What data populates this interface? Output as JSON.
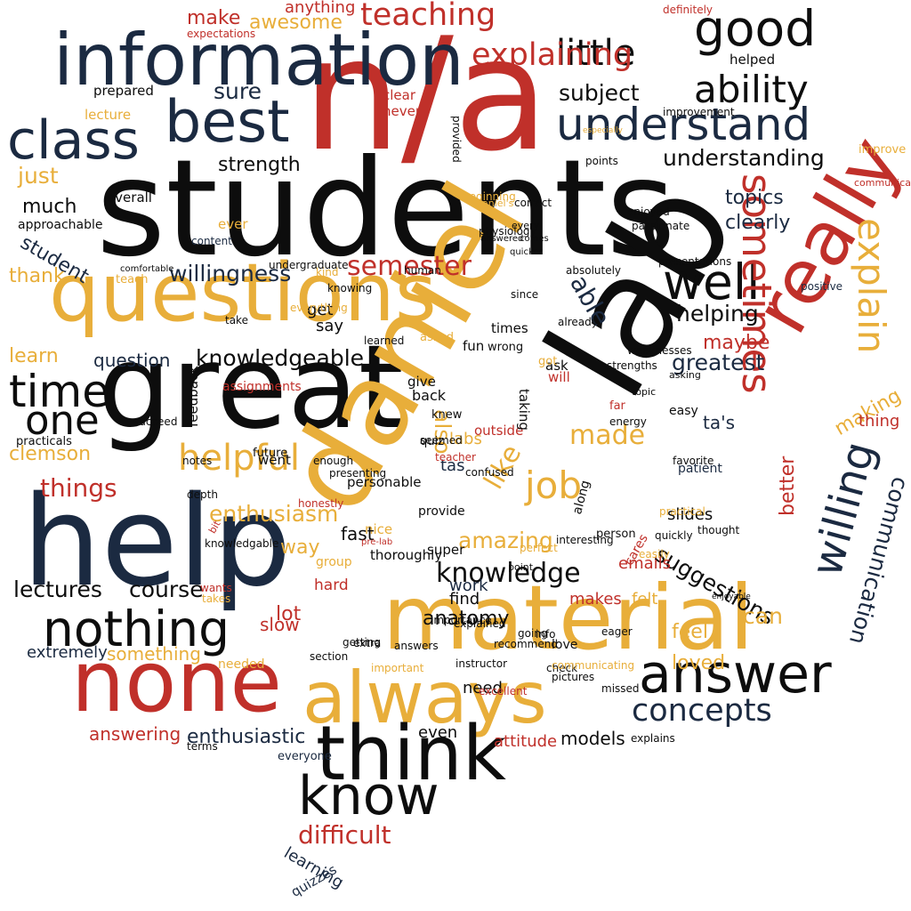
{
  "colors": {
    "navy": "#1b2a41",
    "black": "#0d0d0d",
    "red": "#c0302a",
    "gold": "#e8ae3a"
  },
  "words": [
    {
      "text": "students",
      "color": "black"
    },
    {
      "text": "n/a",
      "color": "red"
    },
    {
      "text": "great",
      "color": "black"
    },
    {
      "text": "daniel",
      "color": "gold"
    },
    {
      "text": "lab",
      "color": "black"
    },
    {
      "text": "help",
      "color": "navy"
    },
    {
      "text": "information",
      "color": "navy"
    },
    {
      "text": "questions",
      "color": "gold"
    },
    {
      "text": "material",
      "color": "gold"
    },
    {
      "text": "none",
      "color": "red"
    },
    {
      "text": "always",
      "color": "gold"
    },
    {
      "text": "think",
      "color": "black"
    },
    {
      "text": "really",
      "color": "red"
    },
    {
      "text": "know",
      "color": "black"
    },
    {
      "text": "answer",
      "color": "black"
    },
    {
      "text": "best",
      "color": "navy"
    },
    {
      "text": "class",
      "color": "navy"
    },
    {
      "text": "understand",
      "color": "navy"
    },
    {
      "text": "good",
      "color": "black"
    },
    {
      "text": "well",
      "color": "black"
    },
    {
      "text": "nothing",
      "color": "black"
    },
    {
      "text": "time",
      "color": "black"
    },
    {
      "text": "one",
      "color": "black"
    },
    {
      "text": "willing",
      "color": "navy"
    },
    {
      "text": "sometimes",
      "color": "red"
    },
    {
      "text": "explain",
      "color": "gold"
    },
    {
      "text": "helpful",
      "color": "gold"
    },
    {
      "text": "ability",
      "color": "black"
    },
    {
      "text": "concepts",
      "color": "navy"
    },
    {
      "text": "job",
      "color": "gold"
    },
    {
      "text": "little",
      "color": "black"
    },
    {
      "text": "teaching",
      "color": "red"
    },
    {
      "text": "explaining",
      "color": "red"
    },
    {
      "text": "semester",
      "color": "red"
    },
    {
      "text": "knowledge",
      "color": "black"
    },
    {
      "text": "like",
      "color": "gold"
    },
    {
      "text": "made",
      "color": "gold"
    },
    {
      "text": "communication",
      "color": "navy"
    },
    {
      "text": "able",
      "color": "navy"
    },
    {
      "text": "understanding",
      "color": "black"
    },
    {
      "text": "difficult",
      "color": "red"
    },
    {
      "text": "things",
      "color": "red"
    },
    {
      "text": "course",
      "color": "black"
    },
    {
      "text": "lectures",
      "color": "black"
    },
    {
      "text": "greatest",
      "color": "navy"
    },
    {
      "text": "knowledgeable",
      "color": "black"
    },
    {
      "text": "amazing",
      "color": "gold"
    },
    {
      "text": "enthusiasm",
      "color": "gold"
    },
    {
      "text": "suggestions",
      "color": "black"
    },
    {
      "text": "helping",
      "color": "black"
    },
    {
      "text": "better",
      "color": "red"
    },
    {
      "text": "clearly",
      "color": "navy"
    },
    {
      "text": "topics",
      "color": "navy"
    },
    {
      "text": "subject",
      "color": "black"
    },
    {
      "text": "sure",
      "color": "navy"
    },
    {
      "text": "willingness",
      "color": "navy"
    },
    {
      "text": "strength",
      "color": "black"
    },
    {
      "text": "maybe",
      "color": "red"
    },
    {
      "text": "also",
      "color": "gold"
    },
    {
      "text": "can",
      "color": "gold"
    },
    {
      "text": "feel",
      "color": "gold"
    },
    {
      "text": "loved",
      "color": "gold"
    },
    {
      "text": "making",
      "color": "gold"
    },
    {
      "text": "anatomy",
      "color": "black"
    },
    {
      "text": "lot",
      "color": "red"
    },
    {
      "text": "clemson",
      "color": "gold"
    },
    {
      "text": "learn",
      "color": "gold"
    },
    {
      "text": "way",
      "color": "gold"
    },
    {
      "text": "enthusiastic",
      "color": "navy"
    },
    {
      "text": "answering",
      "color": "red"
    },
    {
      "text": "just",
      "color": "gold"
    },
    {
      "text": "much",
      "color": "black"
    },
    {
      "text": "student",
      "color": "navy"
    },
    {
      "text": "thank",
      "color": "gold"
    },
    {
      "text": "question",
      "color": "navy"
    },
    {
      "text": "make",
      "color": "red"
    },
    {
      "text": "awesome",
      "color": "gold"
    },
    {
      "text": "anything",
      "color": "red"
    },
    {
      "text": "learning",
      "color": "navy"
    },
    {
      "text": "quizzes",
      "color": "navy"
    },
    {
      "text": "models",
      "color": "black"
    },
    {
      "text": "extremely",
      "color": "navy"
    },
    {
      "text": "something",
      "color": "gold"
    },
    {
      "text": "ta's",
      "color": "navy"
    },
    {
      "text": "thing",
      "color": "red"
    },
    {
      "text": "slides",
      "color": "black"
    },
    {
      "text": "felt",
      "color": "gold"
    },
    {
      "text": "makes",
      "color": "red"
    },
    {
      "text": "emails",
      "color": "red"
    },
    {
      "text": "labs",
      "color": "gold"
    },
    {
      "text": "tas",
      "color": "navy"
    },
    {
      "text": "work",
      "color": "navy"
    },
    {
      "text": "find",
      "color": "black"
    },
    {
      "text": "get",
      "color": "black"
    },
    {
      "text": "say",
      "color": "black"
    },
    {
      "text": "even",
      "color": "black"
    },
    {
      "text": "need",
      "color": "black"
    },
    {
      "text": "attitude",
      "color": "red"
    },
    {
      "text": "definitely",
      "color": "red"
    },
    {
      "text": "expectations",
      "color": "red"
    },
    {
      "text": "helped",
      "color": "black"
    },
    {
      "text": "prepared",
      "color": "black"
    },
    {
      "text": "lecture",
      "color": "gold"
    },
    {
      "text": "clear",
      "color": "red"
    },
    {
      "text": "never",
      "color": "red"
    },
    {
      "text": "improve",
      "color": "gold"
    },
    {
      "text": "improvement",
      "color": "black"
    },
    {
      "text": "communicate",
      "color": "red"
    },
    {
      "text": "overall",
      "color": "black"
    },
    {
      "text": "approachable",
      "color": "black"
    },
    {
      "text": "content",
      "color": "navy"
    },
    {
      "text": "ever",
      "color": "gold"
    },
    {
      "text": "enjoyed",
      "color": "black"
    },
    {
      "text": "passionate",
      "color": "black"
    },
    {
      "text": "points",
      "color": "black"
    },
    {
      "text": "positive",
      "color": "navy"
    },
    {
      "text": "presentations",
      "color": "black"
    },
    {
      "text": "easy",
      "color": "black"
    },
    {
      "text": "patient",
      "color": "navy"
    },
    {
      "text": "favorite",
      "color": "black"
    },
    {
      "text": "eager",
      "color": "black"
    },
    {
      "text": "love",
      "color": "black"
    },
    {
      "text": "check",
      "color": "black"
    },
    {
      "text": "going",
      "color": "black"
    },
    {
      "text": "explained",
      "color": "black"
    },
    {
      "text": "slow",
      "color": "red"
    },
    {
      "text": "hard",
      "color": "red"
    },
    {
      "text": "nice",
      "color": "gold"
    },
    {
      "text": "fast",
      "color": "black"
    },
    {
      "text": "getting",
      "color": "black"
    },
    {
      "text": "needed",
      "color": "gold"
    },
    {
      "text": "practicals",
      "color": "black"
    },
    {
      "text": "succeed",
      "color": "black"
    },
    {
      "text": "feedback",
      "color": "black"
    },
    {
      "text": "went",
      "color": "black"
    },
    {
      "text": "everyone",
      "color": "navy"
    },
    {
      "text": "terms",
      "color": "black"
    },
    {
      "text": "give",
      "color": "black"
    },
    {
      "text": "back",
      "color": "black"
    },
    {
      "text": "quiz",
      "color": "black"
    },
    {
      "text": "ask",
      "color": "black"
    },
    {
      "text": "teach",
      "color": "gold"
    },
    {
      "text": "comfortable",
      "color": "black"
    },
    {
      "text": "knowing",
      "color": "black"
    },
    {
      "text": "kind",
      "color": "gold"
    },
    {
      "text": "times",
      "color": "black"
    },
    {
      "text": "fun",
      "color": "black"
    },
    {
      "text": "will",
      "color": "red"
    },
    {
      "text": "got",
      "color": "gold"
    },
    {
      "text": "far",
      "color": "red"
    },
    {
      "text": "energy",
      "color": "black"
    },
    {
      "text": "super",
      "color": "black"
    },
    {
      "text": "thoroughly",
      "color": "black"
    },
    {
      "text": "provide",
      "color": "black"
    },
    {
      "text": "personable",
      "color": "black"
    },
    {
      "text": "seemed",
      "color": "black"
    },
    {
      "text": "teacher",
      "color": "red"
    },
    {
      "text": "outside",
      "color": "red"
    },
    {
      "text": "asked",
      "color": "gold"
    },
    {
      "text": "wrong",
      "color": "black"
    },
    {
      "text": "taking",
      "color": "black"
    },
    {
      "text": "knew",
      "color": "black"
    },
    {
      "text": "weaknesses",
      "color": "black"
    },
    {
      "text": "strengths",
      "color": "black"
    },
    {
      "text": "asking",
      "color": "black"
    },
    {
      "text": "topic",
      "color": "black"
    },
    {
      "text": "person",
      "color": "black"
    },
    {
      "text": "along",
      "color": "black"
    },
    {
      "text": "cares",
      "color": "red"
    },
    {
      "text": "honestly",
      "color": "red"
    },
    {
      "text": "assignments",
      "color": "red"
    },
    {
      "text": "knowledgable",
      "color": "black"
    },
    {
      "text": "bit",
      "color": "red"
    },
    {
      "text": "wants",
      "color": "red"
    },
    {
      "text": "takes",
      "color": "gold"
    },
    {
      "text": "notes",
      "color": "black"
    },
    {
      "text": "future",
      "color": "black"
    },
    {
      "text": "enough",
      "color": "black"
    },
    {
      "text": "presenting",
      "color": "black"
    },
    {
      "text": "confused",
      "color": "black"
    },
    {
      "text": "depth",
      "color": "black"
    },
    {
      "text": "group",
      "color": "gold"
    },
    {
      "text": "daniel's",
      "color": "gold"
    },
    {
      "text": "beginning",
      "color": "gold"
    },
    {
      "text": "physiology",
      "color": "black"
    },
    {
      "text": "answered",
      "color": "black"
    },
    {
      "text": "every",
      "color": "black"
    },
    {
      "text": "correct",
      "color": "black"
    },
    {
      "text": "quicker",
      "color": "black"
    },
    {
      "text": "comes",
      "color": "black"
    },
    {
      "text": "since",
      "color": "black"
    },
    {
      "text": "already",
      "color": "black"
    },
    {
      "text": "absolutely",
      "color": "black"
    },
    {
      "text": "provided",
      "color": "black"
    },
    {
      "text": "human",
      "color": "black"
    },
    {
      "text": "everything",
      "color": "gold"
    },
    {
      "text": "take",
      "color": "black"
    },
    {
      "text": "learned",
      "color": "black"
    },
    {
      "text": "missed",
      "color": "black"
    },
    {
      "text": "explains",
      "color": "black"
    },
    {
      "text": "excellent",
      "color": "red"
    },
    {
      "text": "communicating",
      "color": "gold"
    },
    {
      "text": "pictures",
      "color": "black"
    },
    {
      "text": "answers",
      "color": "black"
    },
    {
      "text": "instructor",
      "color": "black"
    },
    {
      "text": "section",
      "color": "black"
    },
    {
      "text": "extra",
      "color": "black"
    },
    {
      "text": "important",
      "color": "gold"
    },
    {
      "text": "recommend",
      "color": "black"
    },
    {
      "text": "info",
      "color": "black"
    },
    {
      "text": "perfect",
      "color": "gold"
    },
    {
      "text": "interesting",
      "color": "black"
    },
    {
      "text": "point",
      "color": "black"
    },
    {
      "text": "thought",
      "color": "black"
    },
    {
      "text": "practical",
      "color": "gold"
    },
    {
      "text": "easily",
      "color": "gold"
    },
    {
      "text": "quickly",
      "color": "black"
    },
    {
      "text": "enjoyable",
      "color": "black"
    },
    {
      "text": "importance",
      "color": "black"
    },
    {
      "text": "pre-lab",
      "color": "red"
    },
    {
      "text": "especially",
      "color": "gold"
    },
    {
      "text": "undergraduate",
      "color": "black"
    },
    {
      "text": "presented",
      "color": "gold"
    }
  ]
}
